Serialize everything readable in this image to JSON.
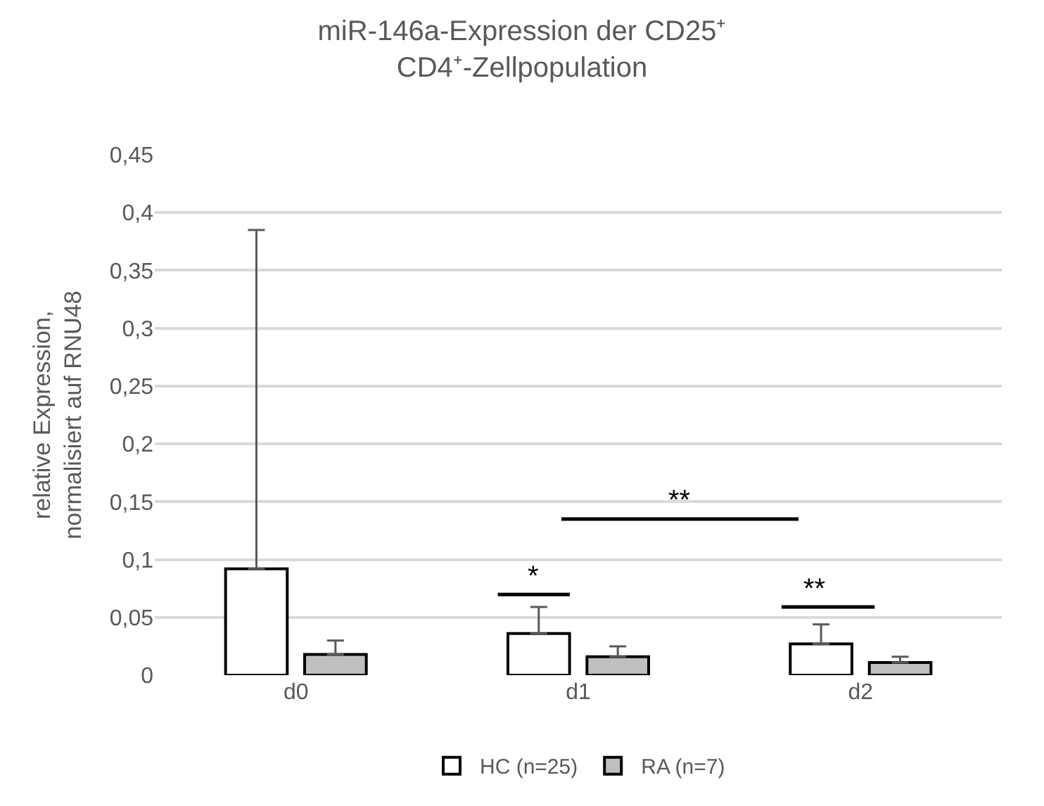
{
  "chart_data": {
    "type": "bar",
    "title": "miR-146a-Expression der CD25⁺ CD4⁺-Zellpopulation",
    "ylabel": "relative Expression, normalisiert auf RNU48",
    "categories": [
      "d0",
      "d1",
      "d2"
    ],
    "series": [
      {
        "name": "HC (n=25)",
        "color": "#ffffff",
        "values": [
          0.092,
          0.036,
          0.027
        ],
        "errors": [
          [
            0.092,
            0.385
          ],
          [
            0.036,
            0.059
          ],
          [
            0.027,
            0.044
          ]
        ]
      },
      {
        "name": "RA (n=7)",
        "color": "#bfbfbf",
        "values": [
          0.018,
          0.016,
          0.011
        ],
        "errors": [
          [
            0.018,
            0.03
          ],
          [
            0.016,
            0.025
          ],
          [
            0.011,
            0.016
          ]
        ]
      }
    ],
    "ylim": [
      0,
      0.45
    ],
    "yticks": [
      0,
      {
        "value": 0.05,
        "label": "0,05"
      },
      {
        "value": 0.1,
        "label": "0,1"
      },
      {
        "value": 0.15,
        "label": "0,15"
      },
      {
        "value": 0.2,
        "label": "0,2"
      },
      {
        "value": 0.25,
        "label": "0,25"
      },
      {
        "value": 0.3,
        "label": "0,3"
      },
      {
        "value": 0.35,
        "label": "0,35"
      },
      {
        "value": 0.4,
        "label": "0,4"
      },
      {
        "value": 0.45,
        "label": "0,45"
      }
    ],
    "annotations": [
      "*",
      "**",
      "**"
    ],
    "grid": "y",
    "legend": "bottom"
  }
}
